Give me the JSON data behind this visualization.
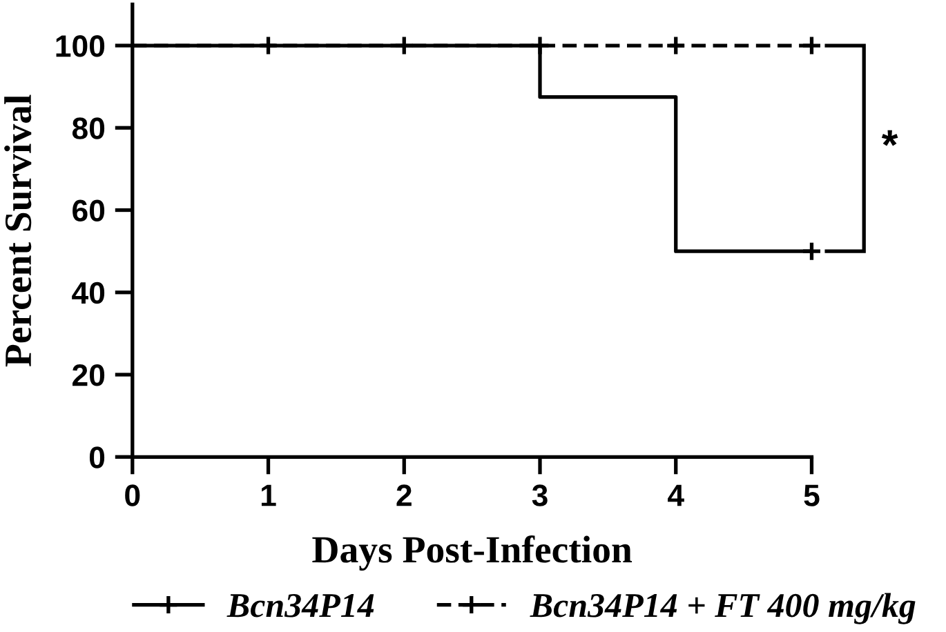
{
  "chart_data": {
    "type": "step",
    "xlabel": "Days Post-Infection",
    "ylabel": "Percent Survival",
    "xlim": [
      0,
      5
    ],
    "xticks": [
      0,
      1,
      2,
      3,
      4,
      5
    ],
    "ylim": [
      0,
      110
    ],
    "yticks": [
      0,
      20,
      40,
      60,
      80,
      100
    ],
    "grid": false,
    "legend": "bottom",
    "series": [
      {
        "name": "Bcn34P14",
        "color": "#000000",
        "line_style": "solid",
        "x": [
          0,
          3,
          4,
          5
        ],
        "values": [
          100,
          87.5,
          50,
          50
        ]
      },
      {
        "name": "Bcn34P14 + FT 400 mg/kg",
        "color": "#000000",
        "line_style": "dashed",
        "x": [
          0,
          5
        ],
        "values": [
          100,
          100
        ]
      },
      {
        "type": "scatter",
        "color": "#000000",
        "marker": "cross",
        "x": [
          1,
          2,
          5
        ],
        "values": [
          100,
          100,
          50
        ]
      },
      {
        "type": "scatter",
        "color": "#000000",
        "marker": "cross",
        "x": [
          3,
          4,
          5
        ],
        "values": [
          100,
          100,
          100
        ]
      }
    ],
    "annotations": [
      "*"
    ]
  }
}
